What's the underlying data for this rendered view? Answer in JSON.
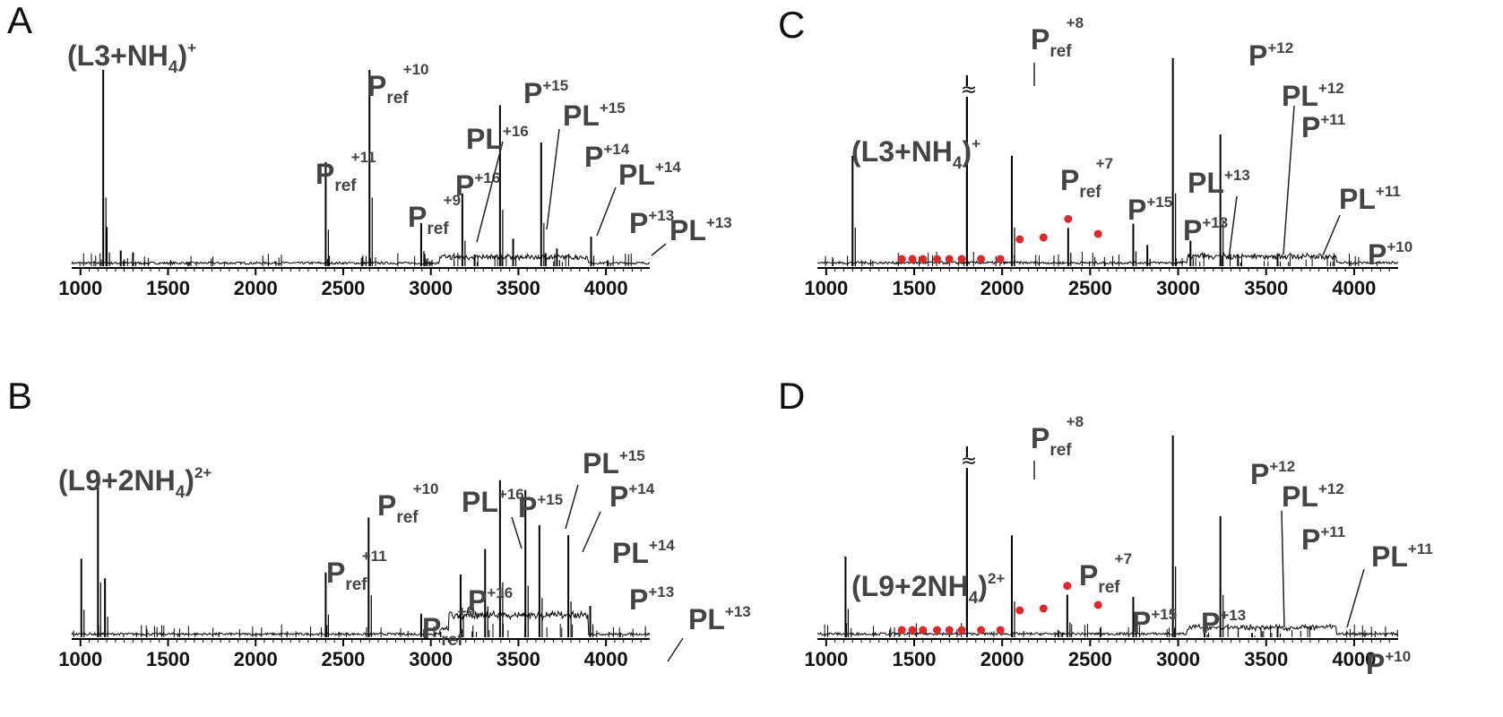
{
  "figure": {
    "panels": [
      "A",
      "B",
      "C",
      "D"
    ],
    "x_ticks": [
      1000,
      1500,
      2000,
      2500,
      3000,
      3500,
      4000
    ],
    "break_symbol": "≈",
    "colors": {
      "trace": "#000000",
      "labels": "#444444",
      "marker": "#e0282b"
    }
  },
  "chart_data": [
    {
      "panel": "A",
      "type": "line",
      "xlim": [
        950,
        4250
      ],
      "xticks": [
        1000,
        1500,
        2000,
        2500,
        3000,
        3500,
        4000
      ],
      "peaks": [
        {
          "x": 1130,
          "h": 1.0,
          "label": "(L3+NH4)+"
        },
        {
          "x": 1150,
          "h": 0.2
        },
        {
          "x": 1230,
          "h": 0.08
        },
        {
          "x": 1300,
          "h": 0.07
        },
        {
          "x": 2400,
          "h": 0.53,
          "label": "Pref+11"
        },
        {
          "x": 2650,
          "h": 1.0,
          "label": "Pref+10"
        },
        {
          "x": 2945,
          "h": 0.22,
          "label": "Pref+9"
        },
        {
          "x": 3180,
          "h": 0.37,
          "label": "P+16"
        },
        {
          "x": 3250,
          "h": 0.06,
          "label": "PL+16"
        },
        {
          "x": 3395,
          "h": 0.82,
          "label": "P+15"
        },
        {
          "x": 3470,
          "h": 0.14,
          "label": "PL+15"
        },
        {
          "x": 3630,
          "h": 0.63,
          "label": "P+14"
        },
        {
          "x": 3720,
          "h": 0.09,
          "label": "PL+14"
        },
        {
          "x": 3915,
          "h": 0.15,
          "label": "P+13"
        },
        {
          "x": 4010,
          "h": 0.03,
          "label": "PL+13"
        }
      ]
    },
    {
      "panel": "B",
      "type": "line",
      "xlim": [
        950,
        4250
      ],
      "xticks": [
        1000,
        1500,
        2000,
        2500,
        3000,
        3500,
        4000
      ],
      "peaks": [
        {
          "x": 1005,
          "h": 0.4
        },
        {
          "x": 1100,
          "h": 0.8,
          "label": "(L9+2NH4)2+"
        },
        {
          "x": 1140,
          "h": 0.3
        },
        {
          "x": 2400,
          "h": 0.33,
          "label": "Pref+11"
        },
        {
          "x": 2645,
          "h": 0.61,
          "label": "Pref+10"
        },
        {
          "x": 2945,
          "h": 0.12,
          "label": "Pref+9"
        },
        {
          "x": 3170,
          "h": 0.32,
          "label": "P+16"
        },
        {
          "x": 3310,
          "h": 0.45,
          "label": "PL+16"
        },
        {
          "x": 3395,
          "h": 0.8,
          "label": "P+15"
        },
        {
          "x": 3540,
          "h": 0.75,
          "label": "PL+15"
        },
        {
          "x": 3620,
          "h": 0.57,
          "label": "P+14"
        },
        {
          "x": 3785,
          "h": 0.52,
          "label": "PL+14"
        },
        {
          "x": 3910,
          "h": 0.16,
          "label": "P+13"
        },
        {
          "x": 4080,
          "h": 0.02,
          "label": "PL+13"
        }
      ]
    },
    {
      "panel": "C",
      "type": "line",
      "xlim": [
        950,
        4250
      ],
      "xticks": [
        1000,
        1500,
        2000,
        2500,
        3000,
        3500,
        4000
      ],
      "peaks": [
        {
          "x": 1150,
          "h": 0.52,
          "label": "(L3+NH4)+"
        },
        {
          "x": 1800,
          "h": 1.0,
          "label": "Pref+8",
          "broken": true
        },
        {
          "x": 2055,
          "h": 0.52,
          "label": "Pref+7"
        },
        {
          "x": 2375,
          "h": 0.18,
          "label": "P+15"
        },
        {
          "x": 2745,
          "h": 0.2,
          "label": "P+13"
        },
        {
          "x": 2825,
          "h": 0.1,
          "label": "PL+13"
        },
        {
          "x": 2970,
          "h": 0.98,
          "label": "P+12"
        },
        {
          "x": 3070,
          "h": 0.12,
          "label": "PL+12"
        },
        {
          "x": 3240,
          "h": 0.62,
          "label": "P+11"
        },
        {
          "x": 3340,
          "h": 0.05,
          "label": "PL+11"
        },
        {
          "x": 3565,
          "h": 0.06,
          "label": "P+10"
        }
      ],
      "dot_positions": [
        1430,
        1490,
        1550,
        1630,
        1700,
        1770,
        1880,
        1990,
        2100,
        2235,
        2375,
        2545
      ]
    },
    {
      "panel": "D",
      "type": "line",
      "xlim": [
        950,
        4250
      ],
      "xticks": [
        1000,
        1500,
        2000,
        2500,
        3000,
        3500,
        4000
      ],
      "peaks": [
        {
          "x": 1110,
          "h": 0.38,
          "label": "(L9+2NH4)2+"
        },
        {
          "x": 1800,
          "h": 1.0,
          "label": "Pref+8",
          "broken": true
        },
        {
          "x": 2055,
          "h": 0.48,
          "label": "Pref+7"
        },
        {
          "x": 2370,
          "h": 0.2,
          "label": "P+15"
        },
        {
          "x": 2745,
          "h": 0.19,
          "label": "P+13"
        },
        {
          "x": 2970,
          "h": 0.95,
          "label": "P+12"
        },
        {
          "x": 3150,
          "h": 0.04,
          "label": "PL+12"
        },
        {
          "x": 3240,
          "h": 0.57,
          "label": "P+11"
        },
        {
          "x": 3420,
          "h": 0.02,
          "label": "PL+11"
        },
        {
          "x": 3565,
          "h": 0.05,
          "label": "P+10"
        }
      ],
      "dot_positions": [
        1430,
        1490,
        1550,
        1630,
        1700,
        1770,
        1880,
        1990,
        2100,
        2235,
        2370,
        2545
      ]
    }
  ],
  "labels": {
    "A": [
      {
        "base": "(L3+NH",
        "sub": "4",
        "tail": ")",
        "sup": "+"
      },
      {
        "base": "P",
        "sub": "ref",
        "sup": "+11"
      },
      {
        "base": "P",
        "sub": "ref",
        "sup": "+10"
      },
      {
        "base": "P",
        "sub": "ref",
        "sup": "+9"
      },
      {
        "base": "P",
        "sup": "+16"
      },
      {
        "base": "PL",
        "sup": "+16"
      },
      {
        "base": "P",
        "sup": "+15"
      },
      {
        "base": "PL",
        "sup": "+15"
      },
      {
        "base": "P",
        "sup": "+14"
      },
      {
        "base": "PL",
        "sup": "+14"
      },
      {
        "base": "P",
        "sup": "+13"
      },
      {
        "base": "PL",
        "sup": "+13"
      }
    ],
    "B": [
      {
        "base": "(L9+2NH",
        "sub": "4",
        "tail": ")",
        "sup": "2+"
      },
      {
        "base": "P",
        "sub": "ref",
        "sup": "+11"
      },
      {
        "base": "P",
        "sub": "ref",
        "sup": "+10"
      },
      {
        "base": "P",
        "sub": "ref",
        "sup": "+9"
      },
      {
        "base": "P",
        "sup": "+16"
      },
      {
        "base": "PL",
        "sup": "+16"
      },
      {
        "base": "P",
        "sup": "+15"
      },
      {
        "base": "PL",
        "sup": "+15"
      },
      {
        "base": "P",
        "sup": "+14"
      },
      {
        "base": "PL",
        "sup": "+14"
      },
      {
        "base": "P",
        "sup": "+13"
      },
      {
        "base": "PL",
        "sup": "+13"
      }
    ],
    "C": [
      {
        "base": "(L3+NH",
        "sub": "4",
        "tail": ")",
        "sup": "+"
      },
      {
        "base": "P",
        "sub": "ref",
        "sup": "+8"
      },
      {
        "base": "P",
        "sub": "ref",
        "sup": "+7"
      },
      {
        "base": "P",
        "sup": "+15"
      },
      {
        "base": "P",
        "sup": "+13"
      },
      {
        "base": "PL",
        "sup": "+13"
      },
      {
        "base": "P",
        "sup": "+12"
      },
      {
        "base": "PL",
        "sup": "+12"
      },
      {
        "base": "P",
        "sup": "+11"
      },
      {
        "base": "PL",
        "sup": "+11"
      },
      {
        "base": "P",
        "sup": "+10"
      }
    ],
    "D": [
      {
        "base": "(L9+2NH",
        "sub": "4",
        "tail": ")",
        "sup": "2+"
      },
      {
        "base": "P",
        "sub": "ref",
        "sup": "+8"
      },
      {
        "base": "P",
        "sub": "ref",
        "sup": "+7"
      },
      {
        "base": "P",
        "sup": "+15"
      },
      {
        "base": "P",
        "sup": "+13"
      },
      {
        "base": "P",
        "sup": "+12"
      },
      {
        "base": "PL",
        "sup": "+12"
      },
      {
        "base": "P",
        "sup": "+11"
      },
      {
        "base": "PL",
        "sup": "+11"
      },
      {
        "base": "P",
        "sup": "+10"
      }
    ]
  }
}
